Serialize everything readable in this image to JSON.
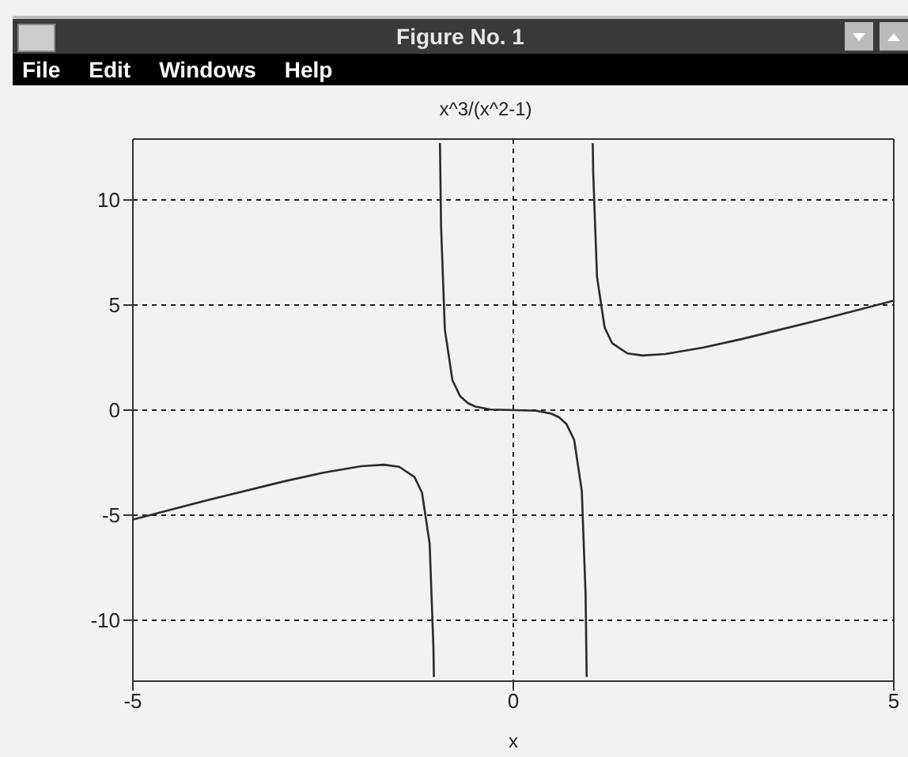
{
  "chart_data": {
    "type": "line",
    "title": "x^3/(x^2-1)",
    "xlabel": "x",
    "annotations": [
      "Figure No. 1",
      "File",
      "Edit",
      "Windows",
      "Help"
    ],
    "x": [
      -5,
      -4,
      -3,
      -2.5,
      -2,
      -1.7,
      -1.5,
      -1.3,
      -1.2,
      -1.1,
      -1.05,
      -1.044,
      -1,
      -0.964,
      -0.95,
      -0.9,
      -0.8,
      -0.7,
      -0.6,
      -0.5,
      -0.3,
      0,
      0.3,
      0.5,
      0.6,
      0.7,
      0.8,
      0.9,
      0.95,
      0.964,
      1,
      1.044,
      1.05,
      1.1,
      1.2,
      1.3,
      1.5,
      1.7,
      2,
      2.5,
      3,
      4,
      5
    ],
    "series": [
      {
        "color": "#2a2a2a",
        "values": [
          -5.21,
          -4.27,
          -3.38,
          -2.98,
          -2.67,
          -2.6,
          -2.7,
          -3.18,
          -3.93,
          -6.34,
          -11.29,
          -12.7,
          null,
          12.7,
          8.79,
          3.84,
          1.42,
          0.67,
          0.34,
          0.17,
          0.03,
          0,
          -0.03,
          -0.17,
          -0.34,
          -0.67,
          -1.42,
          -3.84,
          -8.79,
          -12.7,
          null,
          12.7,
          11.29,
          6.34,
          3.93,
          3.18,
          2.7,
          2.6,
          2.67,
          2.98,
          3.38,
          4.27,
          5.21
        ]
      }
    ],
    "xlim": [
      -5,
      5
    ],
    "xticks": [
      -5,
      0,
      5
    ],
    "ylim": [
      -12.9,
      12.9
    ],
    "yticks": [
      -10,
      -5,
      0,
      5,
      10
    ],
    "grid": true,
    "legend": false,
    "marker": "none",
    "line_style": "solid"
  }
}
